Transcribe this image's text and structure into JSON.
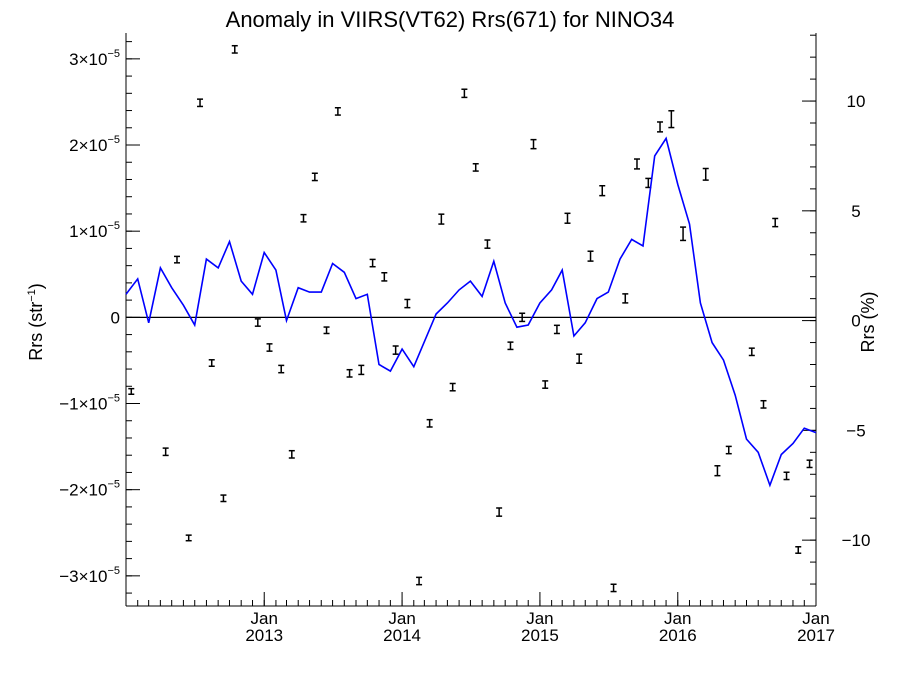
{
  "chart_data": {
    "type": "scatter",
    "title": "Anomaly in VIIRS(VT62) Rrs(671) for NINO34",
    "ylabel_left_base": "Rrs (str",
    "ylabel_left_exp": "−1",
    "ylabel_left_close": ")",
    "ylabel_right": "Rrs (%)",
    "x_range": [
      "2012-01-01",
      "2017-01-01"
    ],
    "ylim_left": [
      -3.35e-05,
      3.3e-05
    ],
    "ylim_right": [
      -13.0,
      13.1
    ],
    "left_ticks": [
      {
        "v": 3e-05,
        "m": "3",
        "e": "−5",
        "neg": false
      },
      {
        "v": 2e-05,
        "m": "2",
        "e": "−5",
        "neg": false
      },
      {
        "v": 1e-05,
        "m": "1",
        "e": "−5",
        "neg": false
      },
      {
        "v": 0,
        "plain": "0"
      },
      {
        "v": -1e-05,
        "m": "1",
        "e": "−5",
        "neg": true
      },
      {
        "v": -2e-05,
        "m": "2",
        "e": "−5",
        "neg": true
      },
      {
        "v": -3e-05,
        "m": "3",
        "e": "−5",
        "neg": true
      }
    ],
    "left_minor_step": 2e-06,
    "right_ticks": [
      {
        "v": 10,
        "label": "10"
      },
      {
        "v": 5,
        "label": "5"
      },
      {
        "v": 0,
        "label": "0"
      },
      {
        "v": -5,
        "label": "−5"
      },
      {
        "v": -10,
        "label": "−10"
      }
    ],
    "right_minor_step": 1,
    "x_ticks": [
      {
        "date": "2013-01-01",
        "month": "Jan",
        "year": "2013"
      },
      {
        "date": "2014-01-01",
        "month": "Jan",
        "year": "2014"
      },
      {
        "date": "2015-01-01",
        "month": "Jan",
        "year": "2015"
      },
      {
        "date": "2016-01-01",
        "month": "Jan",
        "year": "2016"
      },
      {
        "date": "2017-01-01",
        "month": "Jan",
        "year": "2017"
      }
    ],
    "series": [
      {
        "kind": "points_with_errorbars",
        "axis": "left",
        "color": "#000000",
        "points": [
          {
            "x": "2012-01-15",
            "y": -8.6e-06,
            "err": 1.5e-07
          },
          {
            "x": "2012-04-15",
            "y": -1.56e-05,
            "err": 2.5e-07
          },
          {
            "x": "2012-05-15",
            "y": 6.7e-06,
            "err": 2e-07
          },
          {
            "x": "2012-06-15",
            "y": -2.56e-05,
            "err": 1.5e-07
          },
          {
            "x": "2012-07-15",
            "y": 2.49e-05,
            "err": 2.5e-07
          },
          {
            "x": "2012-08-15",
            "y": -5.3e-06,
            "err": 2e-07
          },
          {
            "x": "2012-09-15",
            "y": -2.1e-05,
            "err": 2e-07
          },
          {
            "x": "2012-10-15",
            "y": 3.11e-05,
            "err": 2.5e-07
          },
          {
            "x": "2012-12-15",
            "y": -6e-07,
            "err": 2.5e-07
          },
          {
            "x": "2013-01-15",
            "y": -3.5e-06,
            "err": 2.5e-07
          },
          {
            "x": "2013-02-15",
            "y": -6e-06,
            "err": 2.5e-07
          },
          {
            "x": "2013-03-15",
            "y": -1.59e-05,
            "err": 2.5e-07
          },
          {
            "x": "2013-04-15",
            "y": 1.15e-05,
            "err": 2.5e-07
          },
          {
            "x": "2013-05-15",
            "y": 1.63e-05,
            "err": 2.5e-07
          },
          {
            "x": "2013-06-15",
            "y": -1.5e-06,
            "err": 2e-07
          },
          {
            "x": "2013-07-15",
            "y": 2.39e-05,
            "err": 2.5e-07
          },
          {
            "x": "2013-08-15",
            "y": -6.5e-06,
            "err": 2.5e-07
          },
          {
            "x": "2013-09-15",
            "y": -6.1e-06,
            "err": 3.5e-07
          },
          {
            "x": "2013-10-15",
            "y": 6.3e-06,
            "err": 2.5e-07
          },
          {
            "x": "2013-11-15",
            "y": 4.7e-06,
            "err": 3e-07
          },
          {
            "x": "2013-12-15",
            "y": -3.8e-06,
            "err": 3e-07
          },
          {
            "x": "2014-01-15",
            "y": 1.6e-06,
            "err": 3e-07
          },
          {
            "x": "2014-02-15",
            "y": -3.06e-05,
            "err": 2.5e-07
          },
          {
            "x": "2014-03-15",
            "y": -1.23e-05,
            "err": 2.5e-07
          },
          {
            "x": "2014-04-15",
            "y": 1.14e-05,
            "err": 4e-07
          },
          {
            "x": "2014-05-15",
            "y": -8.1e-06,
            "err": 2.5e-07
          },
          {
            "x": "2014-06-15",
            "y": 2.6e-05,
            "err": 3e-07
          },
          {
            "x": "2014-07-15",
            "y": 1.74e-05,
            "err": 2.5e-07
          },
          {
            "x": "2014-08-15",
            "y": 8.5e-06,
            "err": 3e-07
          },
          {
            "x": "2014-09-15",
            "y": -2.26e-05,
            "err": 3e-07
          },
          {
            "x": "2014-10-15",
            "y": -3.3e-06,
            "err": 2.5e-07
          },
          {
            "x": "2014-11-15",
            "y": 0,
            "err": 3e-07
          },
          {
            "x": "2014-12-15",
            "y": 2.01e-05,
            "err": 3.5e-07
          },
          {
            "x": "2015-01-15",
            "y": -7.8e-06,
            "err": 2.5e-07
          },
          {
            "x": "2015-02-15",
            "y": -1.4e-06,
            "err": 3e-07
          },
          {
            "x": "2015-03-15",
            "y": 1.15e-05,
            "err": 4e-07
          },
          {
            "x": "2015-04-15",
            "y": -4.8e-06,
            "err": 3.5e-07
          },
          {
            "x": "2015-05-15",
            "y": 7.1e-06,
            "err": 4e-07
          },
          {
            "x": "2015-06-15",
            "y": 1.47e-05,
            "err": 4e-07
          },
          {
            "x": "2015-07-15",
            "y": -3.14e-05,
            "err": 2.5e-07
          },
          {
            "x": "2015-08-15",
            "y": 2.2e-06,
            "err": 3.5e-07
          },
          {
            "x": "2015-09-15",
            "y": 1.78e-05,
            "err": 4e-07
          },
          {
            "x": "2015-10-15",
            "y": 1.56e-05,
            "err": 3.5e-07
          },
          {
            "x": "2015-11-15",
            "y": 2.21e-05,
            "err": 4e-07
          },
          {
            "x": "2015-12-15",
            "y": 2.3e-05,
            "err": 8e-07
          },
          {
            "x": "2016-01-15",
            "y": 9.7e-06,
            "err": 6e-07
          },
          {
            "x": "2016-03-15",
            "y": 1.66e-05,
            "err": 5e-07
          },
          {
            "x": "2016-04-15",
            "y": -1.78e-05,
            "err": 4e-07
          },
          {
            "x": "2016-05-15",
            "y": -1.54e-05,
            "err": 2.5e-07
          },
          {
            "x": "2016-07-15",
            "y": -4e-06,
            "err": 2.5e-07
          },
          {
            "x": "2016-08-15",
            "y": -1.01e-05,
            "err": 2.5e-07
          },
          {
            "x": "2016-09-15",
            "y": 1.1e-05,
            "err": 3e-07
          },
          {
            "x": "2016-10-15",
            "y": -1.84e-05,
            "err": 2.5e-07
          },
          {
            "x": "2016-11-15",
            "y": -2.7e-05,
            "err": 2e-07
          },
          {
            "x": "2016-12-15",
            "y": -1.7e-05,
            "err": 2.5e-07
          }
        ]
      },
      {
        "kind": "line",
        "axis": "right",
        "color": "#0000ff",
        "points": [
          {
            "x": "2012-01-01",
            "y": 1.2
          },
          {
            "x": "2012-02-01",
            "y": 1.9
          },
          {
            "x": "2012-03-01",
            "y": -0.1
          },
          {
            "x": "2012-04-01",
            "y": 2.4
          },
          {
            "x": "2012-05-01",
            "y": 1.5
          },
          {
            "x": "2012-06-01",
            "y": 0.7
          },
          {
            "x": "2012-07-01",
            "y": -0.2
          },
          {
            "x": "2012-08-01",
            "y": 2.8
          },
          {
            "x": "2012-09-01",
            "y": 2.4
          },
          {
            "x": "2012-10-01",
            "y": 3.6
          },
          {
            "x": "2012-11-01",
            "y": 1.8
          },
          {
            "x": "2012-12-01",
            "y": 1.2
          },
          {
            "x": "2013-01-01",
            "y": 3.1
          },
          {
            "x": "2013-02-01",
            "y": 2.3
          },
          {
            "x": "2013-03-01",
            "y": 0.0
          },
          {
            "x": "2013-04-01",
            "y": 1.5
          },
          {
            "x": "2013-05-01",
            "y": 1.3
          },
          {
            "x": "2013-06-01",
            "y": 1.3
          },
          {
            "x": "2013-07-01",
            "y": 2.6
          },
          {
            "x": "2013-08-01",
            "y": 2.2
          },
          {
            "x": "2013-09-01",
            "y": 1.0
          },
          {
            "x": "2013-10-01",
            "y": 1.2
          },
          {
            "x": "2013-11-01",
            "y": -2.0
          },
          {
            "x": "2013-12-01",
            "y": -2.3
          },
          {
            "x": "2014-01-01",
            "y": -1.3
          },
          {
            "x": "2014-02-01",
            "y": -2.1
          },
          {
            "x": "2014-04-01",
            "y": 0.3
          },
          {
            "x": "2014-05-01",
            "y": 0.8
          },
          {
            "x": "2014-06-01",
            "y": 1.4
          },
          {
            "x": "2014-07-01",
            "y": 1.8
          },
          {
            "x": "2014-08-01",
            "y": 1.1
          },
          {
            "x": "2014-09-01",
            "y": 2.7
          },
          {
            "x": "2014-10-01",
            "y": 0.8
          },
          {
            "x": "2014-11-01",
            "y": -0.3
          },
          {
            "x": "2014-12-01",
            "y": -0.2
          },
          {
            "x": "2015-01-01",
            "y": 0.8
          },
          {
            "x": "2015-02-01",
            "y": 1.4
          },
          {
            "x": "2015-03-01",
            "y": 2.3
          },
          {
            "x": "2015-04-01",
            "y": -0.7
          },
          {
            "x": "2015-05-01",
            "y": -0.1
          },
          {
            "x": "2015-06-01",
            "y": 1.0
          },
          {
            "x": "2015-07-01",
            "y": 1.3
          },
          {
            "x": "2015-08-01",
            "y": 2.8
          },
          {
            "x": "2015-09-01",
            "y": 3.7
          },
          {
            "x": "2015-10-01",
            "y": 3.4
          },
          {
            "x": "2015-11-01",
            "y": 7.5
          },
          {
            "x": "2015-12-01",
            "y": 8.3
          },
          {
            "x": "2016-01-01",
            "y": 6.2
          },
          {
            "x": "2016-02-01",
            "y": 4.4
          },
          {
            "x": "2016-03-01",
            "y": 0.8
          },
          {
            "x": "2016-04-01",
            "y": -1.0
          },
          {
            "x": "2016-05-01",
            "y": -1.8
          },
          {
            "x": "2016-06-01",
            "y": -3.4
          },
          {
            "x": "2016-07-01",
            "y": -5.4
          },
          {
            "x": "2016-08-01",
            "y": -6.0
          },
          {
            "x": "2016-09-01",
            "y": -7.5
          },
          {
            "x": "2016-10-01",
            "y": -6.1
          },
          {
            "x": "2016-11-01",
            "y": -5.6
          },
          {
            "x": "2016-12-01",
            "y": -4.9
          },
          {
            "x": "2017-01-01",
            "y": -5.1
          }
        ]
      }
    ],
    "zero_line": true,
    "grid": false,
    "legend": "none"
  }
}
